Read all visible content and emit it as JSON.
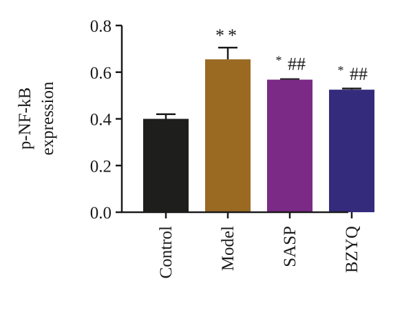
{
  "chart_data": {
    "type": "bar",
    "title": "",
    "xlabel": "",
    "ylabel_lines": [
      "p-NF-kB",
      "expression"
    ],
    "categories": [
      "Control",
      "Model",
      "SASP",
      "BZYQ"
    ],
    "values": [
      0.4,
      0.655,
      0.568,
      0.525
    ],
    "errors": [
      0.02,
      0.05,
      0.0,
      0.005
    ],
    "colors": [
      "#1e1e1c",
      "#9a6a22",
      "#7b2a86",
      "#352b7d"
    ],
    "ylim": [
      0,
      0.8
    ],
    "yticks": [
      "0.0",
      "0.2",
      "0.4",
      "0.6",
      "0.8"
    ],
    "annotations": [
      {
        "category": "Control",
        "stars": "",
        "hashes": ""
      },
      {
        "category": "Model",
        "stars": "**",
        "hashes": ""
      },
      {
        "category": "SASP",
        "stars": "*",
        "hashes": "##"
      },
      {
        "category": "BZYQ",
        "stars": "*",
        "hashes": "##"
      }
    ],
    "grid": false
  }
}
